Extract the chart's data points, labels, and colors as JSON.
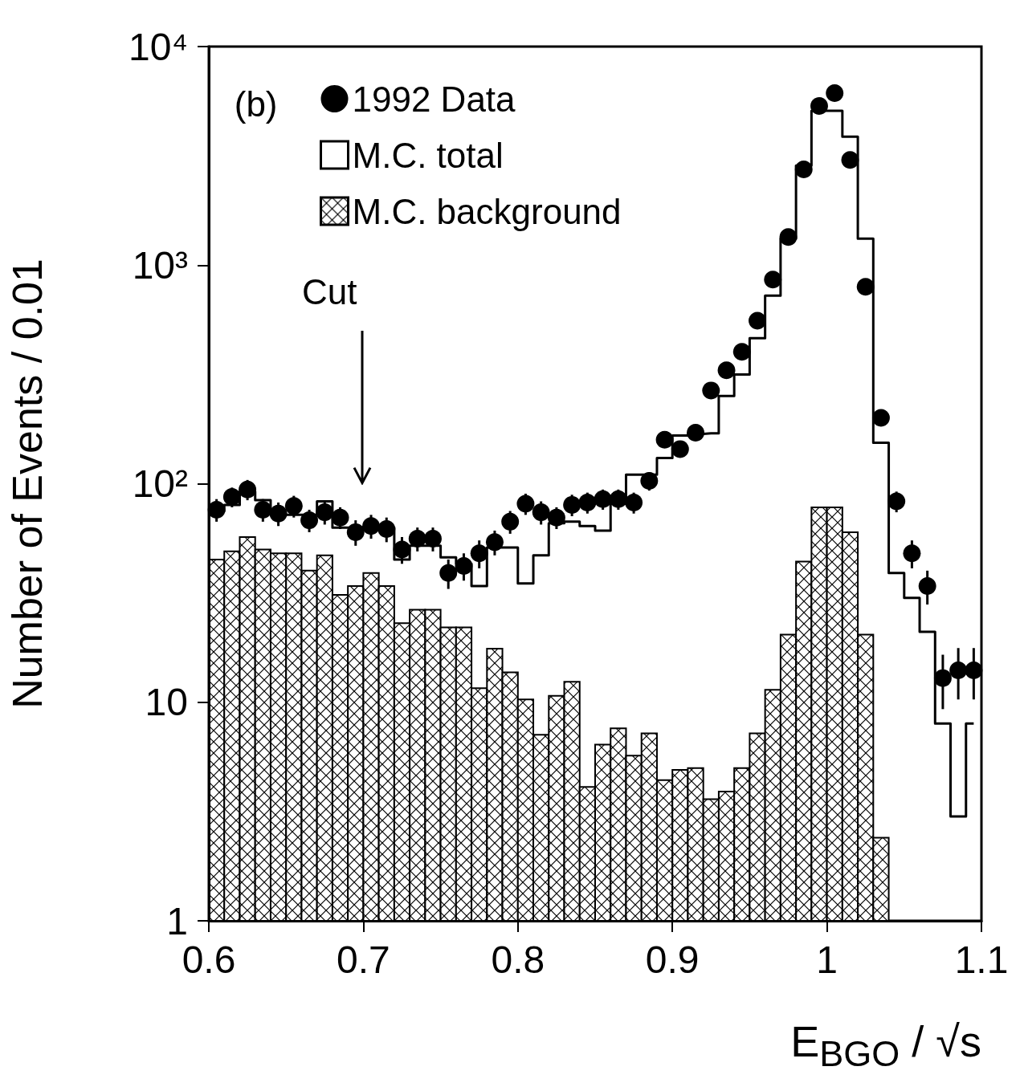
{
  "chart_data": {
    "type": "histogram",
    "xlabel": "E$_{BGO}$ / √s",
    "ylabel": "Number of Events / 0.01",
    "annotations": [
      "(b)",
      "Cut"
    ],
    "bins": [
      0.6,
      0.61,
      0.62,
      0.63,
      0.64,
      0.65,
      0.66,
      0.67,
      0.68,
      0.69,
      0.7,
      0.71,
      0.72,
      0.73,
      0.74,
      0.75,
      0.76,
      0.77,
      0.78,
      0.79,
      0.8,
      0.81,
      0.82,
      0.83,
      0.84,
      0.85,
      0.86,
      0.87,
      0.88,
      0.89,
      0.9,
      0.91,
      0.92,
      0.93,
      0.94,
      0.95,
      0.96,
      0.97,
      0.98,
      0.99,
      1.0,
      1.01,
      1.02,
      1.03,
      1.04
    ],
    "log": "y",
    "xlim": [
      0.6,
      1.1
    ],
    "ylim": [
      1,
      10000
    ],
    "xticks": [
      0.6,
      0.7,
      0.8,
      0.9,
      1,
      1.1
    ],
    "yticks": [
      1,
      10,
      {
        "value": 100,
        "label": "10²"
      },
      {
        "value": 1000,
        "label": "10³"
      },
      {
        "value": 10000,
        "label": "10⁴"
      }
    ],
    "legend": "top left",
    "series": [
      {
        "name": "1992 Data",
        "type": "scatter",
        "marker": "circle",
        "color": "#000000",
        "x": [
          0.605,
          0.615,
          0.625,
          0.635,
          0.645,
          0.655,
          0.665,
          0.675,
          0.685,
          0.695,
          0.705,
          0.715,
          0.725,
          0.735,
          0.745,
          0.755,
          0.765,
          0.775,
          0.785,
          0.795,
          0.805,
          0.815,
          0.825,
          0.835,
          0.845,
          0.855,
          0.865,
          0.875,
          0.885,
          0.895,
          0.905,
          0.915,
          0.925,
          0.935,
          0.945,
          0.955,
          0.965,
          0.975,
          0.985,
          0.995,
          1.005,
          1.015,
          1.025,
          1.035,
          1.045,
          1.055,
          1.065,
          1.075,
          1.085,
          1.095
        ],
        "values": [
          76,
          87,
          94,
          76,
          73,
          79,
          68,
          74,
          70,
          60,
          64,
          62,
          50,
          56,
          56,
          39,
          42,
          48,
          54,
          67,
          81,
          74,
          70,
          80,
          82,
          85,
          85,
          82,
          103,
          159,
          144,
          171,
          267,
          330,
          401,
          557,
          859,
          1345,
          2740,
          5345,
          6120,
          3030,
          796,
          200,
          83,
          48,
          34,
          12.9,
          14,
          14
        ],
        "errors": [
          9,
          9,
          10,
          9,
          9,
          9,
          8,
          9,
          8,
          8,
          8,
          8,
          7,
          7,
          7,
          6,
          6,
          7,
          7,
          8,
          9,
          9,
          8,
          9,
          9,
          9,
          9,
          9,
          10,
          13,
          12,
          13,
          16,
          null,
          null,
          null,
          null,
          null,
          null,
          null,
          null,
          null,
          null,
          null,
          9,
          7,
          6,
          3.6,
          3.7,
          3.7
        ]
      },
      {
        "name": "M.C. total",
        "type": "step",
        "color": "#000000",
        "x": [
          0.605,
          0.615,
          0.625,
          0.635,
          0.645,
          0.655,
          0.665,
          0.675,
          0.685,
          0.695,
          0.705,
          0.715,
          0.725,
          0.735,
          0.745,
          0.755,
          0.765,
          0.775,
          0.785,
          0.795,
          0.805,
          0.815,
          0.825,
          0.835,
          0.845,
          0.855,
          0.865,
          0.875,
          0.885,
          0.895,
          0.905,
          0.915,
          0.925,
          0.935,
          0.945,
          0.955,
          0.965,
          0.975,
          0.985,
          0.995,
          1.005,
          1.015,
          1.025,
          1.035,
          1.045,
          1.055,
          1.065,
          1.075,
          1.085,
          1.095
        ],
        "values": [
          75,
          80,
          92,
          84,
          72,
          72,
          72,
          83,
          63,
          63,
          63,
          63,
          45,
          52,
          52,
          46,
          43,
          34,
          51,
          51,
          35,
          47,
          66,
          67,
          64,
          61,
          81,
          110,
          110,
          131,
          166,
          169,
          170,
          252,
          316,
          463,
          725,
          1322,
          2857,
          5080,
          5080,
          3873,
          1322,
          154,
          39,
          30,
          21,
          8,
          3,
          8
        ]
      },
      {
        "name": "M.C. background",
        "type": "histogram",
        "color": "#000000",
        "values": [
          45,
          49,
          57,
          50,
          48,
          48,
          40,
          47,
          31,
          34,
          39,
          34,
          23,
          26.5,
          26.5,
          22,
          22,
          11.6,
          17.6,
          13.7,
          10.3,
          7.1,
          10.7,
          12.4,
          4.1,
          6.4,
          7.6,
          5.7,
          7.2,
          4.4,
          4.9,
          5.0,
          3.6,
          3.9,
          5.0,
          7.2,
          11.4,
          20.4,
          44,
          78,
          78,
          60,
          20.4,
          2.4
        ]
      }
    ]
  }
}
